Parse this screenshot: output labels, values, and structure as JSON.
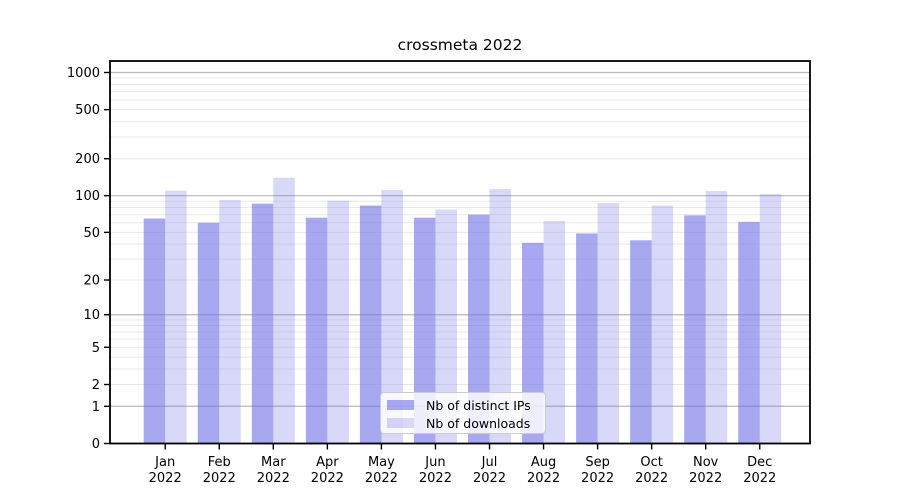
{
  "title": "crossmeta 2022",
  "chart_data": {
    "type": "bar",
    "title": "crossmeta 2022",
    "categories": [
      "Jan",
      "Feb",
      "Mar",
      "Apr",
      "May",
      "Jun",
      "Jul",
      "Aug",
      "Sep",
      "Oct",
      "Nov",
      "Dec"
    ],
    "category_year": "2022",
    "series": [
      {
        "name": "Nb of distinct IPs",
        "color": "rgba(110,110,230,0.60)",
        "values": [
          65,
          60,
          86,
          66,
          83,
          66,
          70,
          41,
          49,
          43,
          69,
          61
        ]
      },
      {
        "name": "Nb of downloads",
        "color": "rgba(110,110,230,0.27)",
        "values": [
          110,
          92,
          140,
          91,
          111,
          77,
          113,
          62,
          87,
          83,
          109,
          103
        ]
      }
    ],
    "xlabel": "",
    "ylabel": "",
    "y_scale": "log10(value+1)",
    "y_ticks": [
      0,
      1,
      2,
      5,
      10,
      20,
      50,
      100,
      200,
      500,
      1000
    ],
    "y_major_grid": [
      1,
      10,
      100,
      1000
    ],
    "ylim": [
      0,
      1240
    ],
    "grid": true,
    "legend_position": "lower center"
  },
  "colors": {
    "bar_distinct_ips": "rgba(110,110,230,0.60)",
    "bar_downloads": "rgba(110,110,230,0.27)",
    "grid_major": "#b8b8b8",
    "grid_minor": "#e9e9e9",
    "axis": "#000000",
    "text": "#000000",
    "legend_border": "#cccccc",
    "legend_bg": "rgba(255,255,255,0.8)"
  }
}
